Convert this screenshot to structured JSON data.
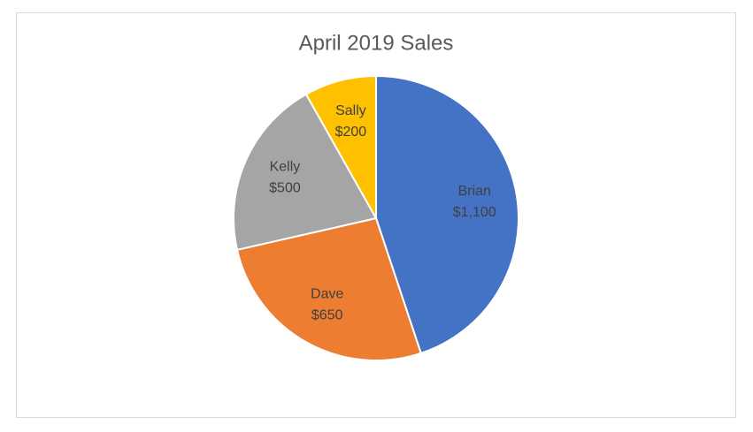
{
  "chart_data": {
    "type": "pie",
    "title": "April 2019 Sales",
    "categories": [
      "Brian",
      "Dave",
      "Kelly",
      "Sally"
    ],
    "values": [
      1100,
      650,
      500,
      200
    ],
    "value_labels": [
      "$1,100",
      "$650",
      "$500",
      "$200"
    ],
    "colors": [
      "#4472c4",
      "#ed7d31",
      "#a5a5a5",
      "#ffc000"
    ]
  }
}
